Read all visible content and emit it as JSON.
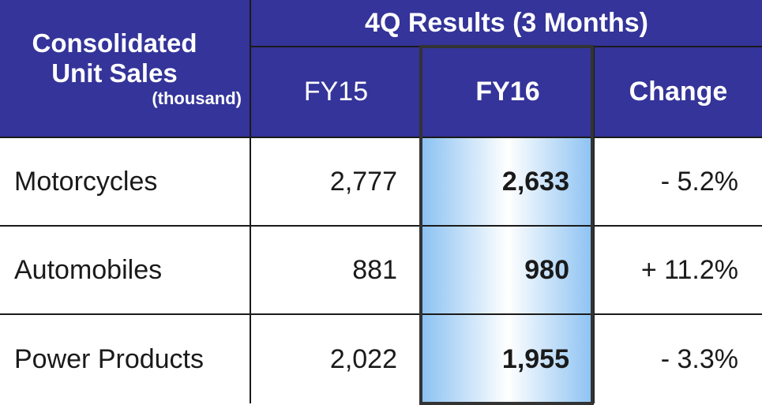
{
  "table": {
    "corner": {
      "title": "Consolidated Unit Sales",
      "unit": "(thousand)"
    },
    "group_header": "4Q Results (3 Months)",
    "columns": [
      "FY15",
      "FY16",
      "Change"
    ],
    "rows": [
      [
        "Motorcycles",
        "2,777",
        "2,633",
        "- 5.2%"
      ],
      [
        "Automobiles",
        "881",
        "980",
        "+ 11.2%"
      ],
      [
        "Power Products",
        "2,022",
        "1,955",
        "- 3.3%"
      ]
    ]
  }
}
